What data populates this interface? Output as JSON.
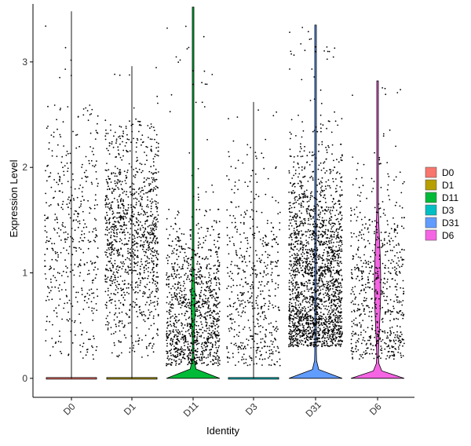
{
  "chart_data": {
    "type": "violin",
    "title": "",
    "xlabel": "Identity",
    "ylabel": "Expression Level",
    "ylim": [
      -0.18,
      3.55
    ],
    "yticks": [
      0,
      1,
      2,
      3
    ],
    "grid": false,
    "legend_position": "right",
    "points": "jittered cells overlaid on violins",
    "categories": [
      "D0",
      "D1",
      "D11",
      "D3",
      "D31",
      "D6"
    ],
    "colors": [
      "#F8766D",
      "#B79F00",
      "#00BA38",
      "#00BFC4",
      "#619CFF",
      "#F564E3"
    ],
    "series": [
      {
        "name": "D0",
        "max": 3.48,
        "fraction_nonzero": 0.22,
        "nonzero_range": [
          0.2,
          2.6
        ],
        "violin_density_at_zero": "very low"
      },
      {
        "name": "D1",
        "max": 2.96,
        "fraction_nonzero": 0.35,
        "nonzero_range": [
          0.2,
          2.45
        ],
        "violin_density_at_zero": "very low"
      },
      {
        "name": "D11",
        "max": 3.52,
        "fraction_nonzero": 0.3,
        "nonzero_range": [
          0.15,
          2.5
        ],
        "violin_density_at_zero": "moderate"
      },
      {
        "name": "D3",
        "max": 2.62,
        "fraction_nonzero": 0.2,
        "nonzero_range": [
          0.15,
          2.3
        ],
        "violin_density_at_zero": "very low"
      },
      {
        "name": "D31",
        "max": 3.35,
        "fraction_nonzero": 0.4,
        "nonzero_range": [
          0.3,
          3.0
        ],
        "violin_density_at_zero": "moderate"
      },
      {
        "name": "D6",
        "max": 2.82,
        "fraction_nonzero": 0.45,
        "nonzero_range": [
          0.2,
          2.5
        ],
        "violin_density_at_zero": "high"
      }
    ]
  }
}
